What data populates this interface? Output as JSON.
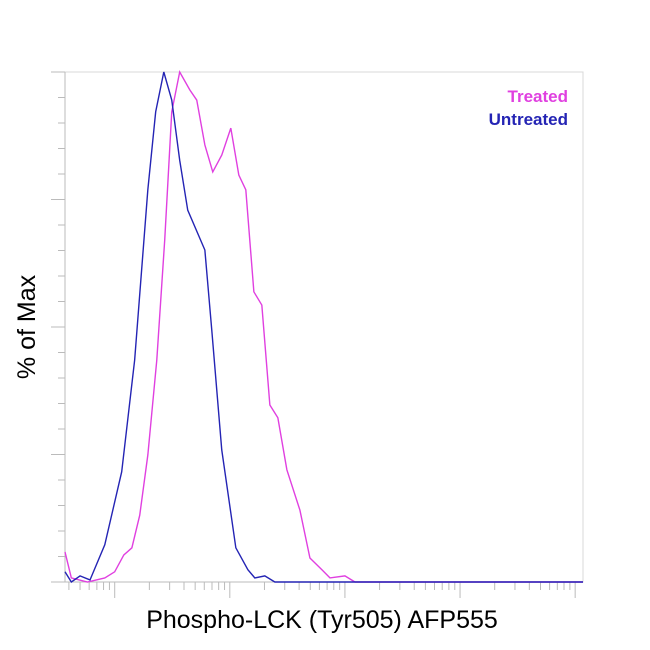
{
  "chart_data": {
    "type": "line",
    "xlabel": "Phospho-LCK (Tyr505) AFP555",
    "ylabel": "% of Max",
    "xscale": "log",
    "xlim": [
      37,
      1170000
    ],
    "ylim": [
      0,
      100
    ],
    "xticks": [
      40,
      50,
      60,
      70,
      80,
      90,
      100,
      200,
      300,
      400,
      500,
      600,
      700,
      800,
      900,
      1000,
      2000,
      3000,
      4000,
      5000,
      6000,
      7000,
      8000,
      9000,
      10000,
      20000,
      30000,
      40000,
      50000,
      60000,
      70000,
      80000,
      90000,
      100000,
      200000,
      300000,
      400000,
      500000,
      600000,
      700000,
      800000,
      900000,
      1000000
    ],
    "yticks": [
      0,
      5,
      10,
      15,
      20,
      25,
      30,
      35,
      40,
      45,
      50,
      55,
      60,
      65,
      70,
      75,
      80,
      85,
      90,
      95,
      100
    ],
    "legend": "top-right",
    "series": [
      {
        "name": "Treated",
        "color": "#e040e0",
        "x": [
          37,
          42,
          58,
          82,
          100,
          120,
          141,
          165,
          194,
          232,
          272,
          313,
          367,
          449,
          516,
          607,
          711,
          851,
          1020,
          1197,
          1377,
          1618,
          1897,
          2228,
          2614,
          3131,
          4063,
          4966,
          6310,
          7413,
          10000,
          12220,
          1170000
        ],
        "values": [
          5.9,
          0.8,
          0,
          0.8,
          2.0,
          5.3,
          6.7,
          13.1,
          24.9,
          43.5,
          67.1,
          92.2,
          100,
          96.5,
          94.5,
          85.7,
          80.4,
          83.7,
          89.0,
          79.8,
          76.9,
          56.9,
          54.3,
          34.7,
          32.2,
          22.0,
          14.1,
          4.7,
          2.4,
          0.8,
          1.2,
          0,
          0
        ]
      },
      {
        "name": "Untreated",
        "color": "#2424b4",
        "x": [
          37,
          42,
          50,
          61,
          82,
          115,
          149,
          194,
          227,
          267,
          313,
          367,
          431,
          607,
          697,
          851,
          1128,
          1435,
          1649,
          2014,
          2462,
          1170000
        ],
        "values": [
          2.0,
          0,
          1.2,
          0.4,
          7.3,
          21.6,
          43.5,
          76.9,
          92.2,
          100,
          94.5,
          82.7,
          72.9,
          65.1,
          49.4,
          25.9,
          6.7,
          2.4,
          0.8,
          1.2,
          0,
          0
        ]
      }
    ]
  }
}
